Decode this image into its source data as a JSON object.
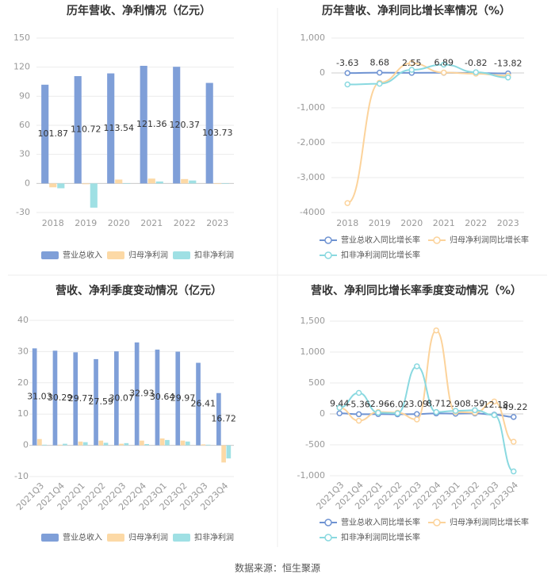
{
  "chart_data": [
    {
      "type": "bar",
      "title": "历年营收、净利情况（亿元）",
      "categories": [
        "2018",
        "2019",
        "2020",
        "2021",
        "2022",
        "2023"
      ],
      "series": [
        {
          "name": "营业总收入",
          "color": "#7f9fd8",
          "values": [
            101.87,
            110.72,
            113.54,
            121.36,
            120.37,
            103.73
          ],
          "labels": true
        },
        {
          "name": "归母净利润",
          "color": "#fcd9a6",
          "values": [
            -4,
            -0.8,
            4,
            5,
            4.5,
            -0.6
          ]
        },
        {
          "name": "扣非净利润",
          "color": "#9fe0e4",
          "values": [
            -5,
            -25,
            -0.5,
            2,
            3,
            -0.5
          ]
        }
      ],
      "ylim": [
        -30,
        150
      ],
      "yticks": [
        -30,
        0,
        30,
        60,
        90,
        120,
        150
      ],
      "grid": true,
      "legend": "bottom"
    },
    {
      "type": "line",
      "title": "历年营收、净利同比增长率情况（%）",
      "categories": [
        "2018",
        "2019",
        "2020",
        "2021",
        "2022",
        "2023"
      ],
      "series": [
        {
          "name": "营业总收入同比增长率",
          "color": "#6f93d2",
          "values": [
            -3.63,
            8.68,
            2.55,
            6.89,
            -0.82,
            -13.82
          ],
          "labels": true
        },
        {
          "name": "归母净利润同比增长率",
          "color": "#fcd39b",
          "values": [
            -3730,
            -280,
            280,
            10,
            -20,
            -80
          ]
        },
        {
          "name": "扣非净利润同比增长率",
          "color": "#8ad9e0",
          "values": [
            -330,
            -310,
            90,
            240,
            20,
            -130
          ]
        }
      ],
      "ylim": [
        -4000,
        1000
      ],
      "yticks": [
        -4000,
        {
          "value": -3000,
          "label": "-3,000"
        },
        {
          "value": -2000,
          "label": "-2,000"
        },
        {
          "value": -1000,
          "label": "-1,000"
        },
        0,
        {
          "value": 1000,
          "label": "1,000"
        }
      ],
      "grid": true,
      "legend": "bottom"
    },
    {
      "type": "bar",
      "title": "营收、净利季度变动情况（亿元）",
      "categories": [
        "2021Q3",
        "2021Q4",
        "2022Q1",
        "2022Q2",
        "2022Q3",
        "2022Q4",
        "2023Q1",
        "2023Q2",
        "2023Q3",
        "2023Q4"
      ],
      "series": [
        {
          "name": "营业总收入",
          "color": "#7f9fd8",
          "values": [
            31.03,
            30.29,
            29.77,
            27.59,
            30.07,
            32.93,
            30.64,
            29.97,
            26.41,
            16.72
          ],
          "labels": true
        },
        {
          "name": "归母净利润",
          "color": "#fcd9a6",
          "values": [
            2,
            0.2,
            1.2,
            1.5,
            0.5,
            1.5,
            2.2,
            1.5,
            0.3,
            -5.5
          ]
        },
        {
          "name": "扣非净利润",
          "color": "#9fe0e4",
          "values": [
            0.2,
            0.5,
            1,
            0.8,
            0.7,
            0.4,
            1.7,
            1.2,
            0.2,
            -4.2
          ]
        }
      ],
      "ylim": [
        -10,
        40
      ],
      "yticks": [
        -10,
        0,
        10,
        20,
        30,
        40
      ],
      "grid": true,
      "legend": "bottom"
    },
    {
      "type": "line",
      "title": "营收、净利同比增长率季度变动情况（%）",
      "categories": [
        "2021Q3",
        "2021Q4",
        "2022Q1",
        "2022Q2",
        "2022Q3",
        "2022Q4",
        "2023Q1",
        "2023Q2",
        "2023Q3",
        "2023Q4"
      ],
      "series": [
        {
          "name": "营业总收入同比增长率",
          "color": "#6f93d2",
          "values": [
            9.44,
            -5.36,
            -2.96,
            -6.02,
            -3.09,
            8.71,
            2.9,
            8.59,
            -12.18,
            -49.22
          ],
          "value_labels": [
            "9.44",
            "-5.36",
            "-2.96",
            "-6.02",
            "-3.09",
            "8.71",
            "2.90",
            "8.59",
            "-12.18",
            "-49.22"
          ],
          "labels": true
        },
        {
          "name": "归母净利润同比增长率",
          "color": "#fcd39b",
          "values": [
            100,
            -110,
            30,
            20,
            -90,
            1350,
            30,
            20,
            200,
            -450
          ]
        },
        {
          "name": "扣非净利润同比增长率",
          "color": "#8ad9e0",
          "values": [
            100,
            340,
            20,
            10,
            770,
            30,
            50,
            60,
            -20,
            -930
          ]
        }
      ],
      "ylim": [
        -1000,
        1500
      ],
      "yticks": [
        {
          "value": -1000,
          "label": "-1,000"
        },
        -500,
        0,
        500,
        {
          "value": 1000,
          "label": "1,000"
        },
        {
          "value": 1500,
          "label": "1,500"
        }
      ],
      "grid": true,
      "legend": "bottom"
    }
  ],
  "source": "数据来源：恒生聚源"
}
